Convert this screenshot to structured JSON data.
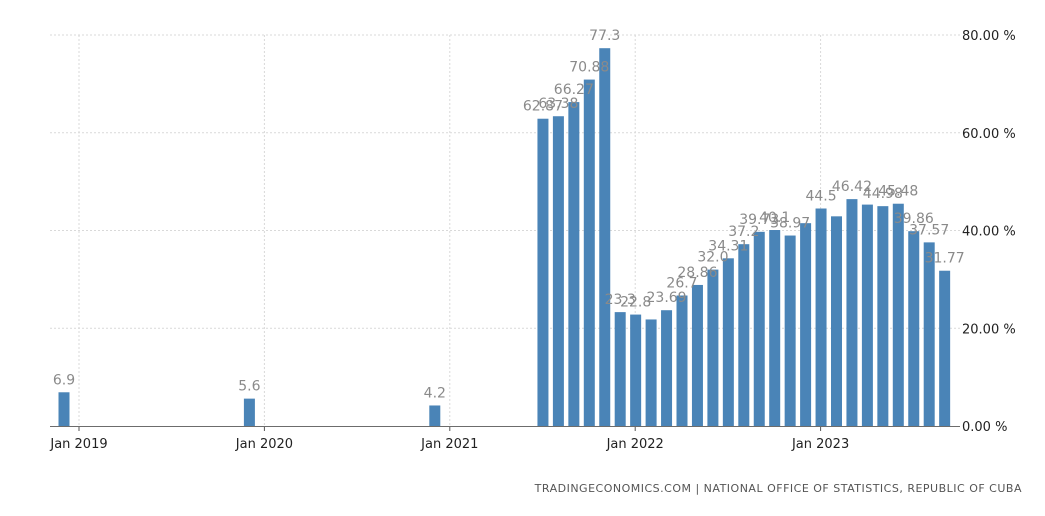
{
  "source": "TRADINGECONOMICS.COM | NATIONAL OFFICE OF STATISTICS, REPUBLIC OF CUBA",
  "chart_data": {
    "type": "bar",
    "color": "#4a84b7",
    "grid": true,
    "ylim": [
      0,
      80
    ],
    "y_ticks": [
      "0.00 %",
      "20.00 %",
      "40.00 %",
      "60.00 %",
      "80.00 %"
    ],
    "x_ticks": [
      "Jan 2019",
      "Jan 2020",
      "Jan 2021",
      "Jan 2022",
      "Jan 2023"
    ],
    "x_tick_dates": [
      "2019-01",
      "2020-01",
      "2021-01",
      "2022-01",
      "2023-01"
    ],
    "dates": [
      "2019-01",
      "2020-01",
      "2021-01",
      "2021-08",
      "2021-09",
      "2021-10",
      "2021-11",
      "2021-12",
      "2022-01",
      "2022-02",
      "2022-03",
      "2022-04",
      "2022-05",
      "2022-06",
      "2022-07",
      "2022-08",
      "2022-09",
      "2022-10",
      "2022-11",
      "2022-12",
      "2023-01",
      "2023-02",
      "2023-03",
      "2023-04",
      "2023-05",
      "2023-06",
      "2023-07",
      "2023-08",
      "2023-09",
      "2023-10"
    ],
    "values": [
      6.9,
      5.6,
      4.2,
      62.87,
      63.38,
      66.27,
      70.88,
      77.3,
      23.3,
      22.8,
      21.8,
      23.69,
      26.7,
      28.86,
      32.0,
      34.31,
      37.2,
      39.73,
      40.1,
      38.97,
      41.5,
      44.5,
      42.9,
      46.42,
      45.3,
      44.98,
      45.48,
      39.86,
      37.57,
      31.77
    ],
    "labels": [
      "6.9",
      "5.6",
      "4.2",
      "62.87",
      "63.38",
      "66.27",
      "70.88",
      "77.3",
      "23.3",
      "22.8",
      "",
      "23.69",
      "26.7",
      "28.86",
      "32.0",
      "34.31",
      "37.2",
      "39.73",
      "40.1",
      "38.97",
      "",
      "44.5",
      "",
      "46.42",
      "",
      "44.98",
      "45.48",
      "39.86",
      "37.57",
      "31.77"
    ]
  }
}
